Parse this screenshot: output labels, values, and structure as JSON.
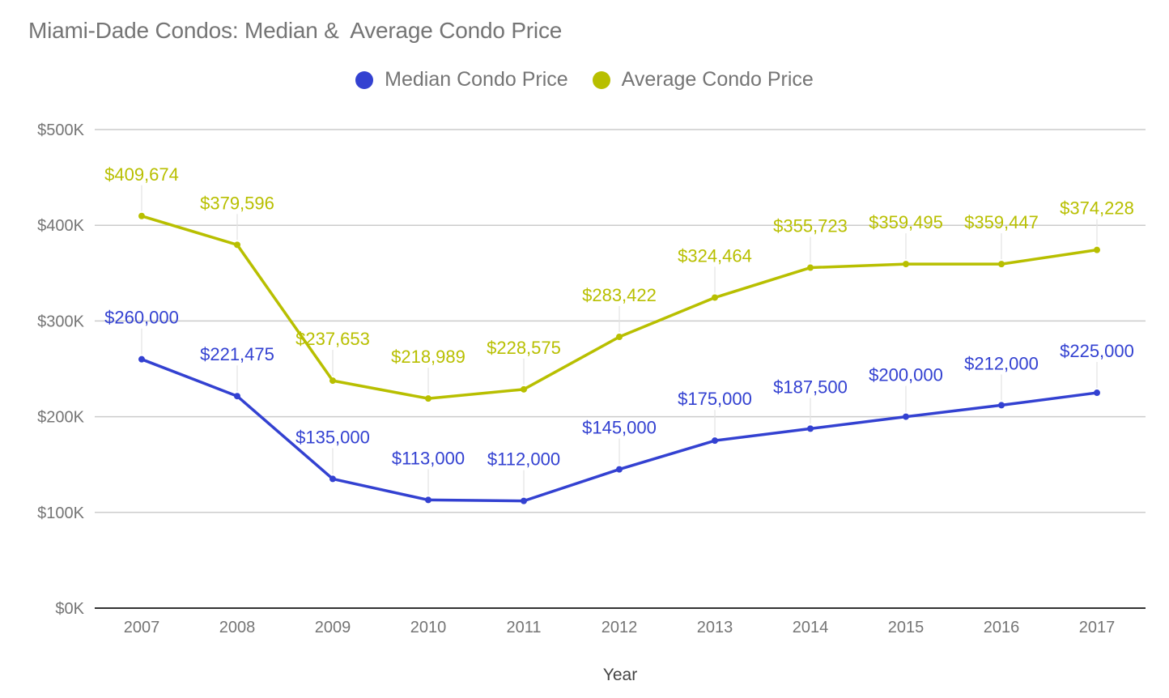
{
  "chart_data": {
    "type": "line",
    "title": "Miami-Dade Condos: Median &  Average Condo Price",
    "xlabel": "Year",
    "ylabel": "",
    "categories": [
      "2007",
      "2008",
      "2009",
      "2010",
      "2011",
      "2012",
      "2013",
      "2014",
      "2015",
      "2016",
      "2017"
    ],
    "ylim": [
      0,
      500000
    ],
    "yticks": [
      0,
      100000,
      200000,
      300000,
      400000,
      500000
    ],
    "ytick_labels": [
      "$0K",
      "$100K",
      "$200K",
      "$300K",
      "$400K",
      "$500K"
    ],
    "grid": true,
    "legend_position": "top-center",
    "series": [
      {
        "name": "Median Condo Price",
        "color": "#3341d1",
        "values": [
          260000,
          221475,
          135000,
          113000,
          112000,
          145000,
          175000,
          187500,
          200000,
          212000,
          225000
        ],
        "labels": [
          "$260,000",
          "$221,475",
          "$135,000",
          "$113,000",
          "$112,000",
          "$145,000",
          "$175,000",
          "$187,500",
          "$200,000",
          "$212,000",
          "$225,000"
        ]
      },
      {
        "name": "Average Condo Price",
        "color": "#b8bf00",
        "values": [
          409674,
          379596,
          237653,
          218989,
          228575,
          283422,
          324464,
          355723,
          359495,
          359447,
          374228
        ],
        "labels": [
          "$409,674",
          "$379,596",
          "$237,653",
          "$218,989",
          "$228,575",
          "$283,422",
          "$324,464",
          "$355,723",
          "$359,495",
          "$359,447",
          "$374,228"
        ]
      }
    ]
  }
}
